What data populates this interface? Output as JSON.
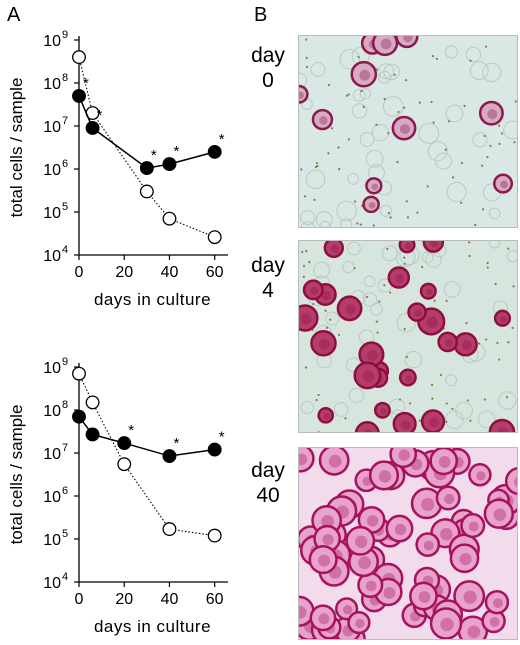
{
  "panel_a": "A",
  "panel_b": "B",
  "chart_data": [
    {
      "type": "scatter",
      "xlabel": "days in culture",
      "ylabel": "total cells / sample",
      "xlim": [
        0,
        65
      ],
      "ylim_exponent": [
        4,
        9
      ],
      "y_scale": "log10",
      "x_ticks": [
        "0",
        "20",
        "40",
        "60"
      ],
      "y_tick_labels": [
        "10",
        "10",
        "10",
        "10",
        "10",
        "10"
      ],
      "y_tick_exponents": [
        "4",
        "5",
        "6",
        "7",
        "8",
        "9"
      ],
      "series": [
        {
          "marker": "filled-circle",
          "line": "solid",
          "x": [
            0,
            6,
            30,
            40,
            60
          ],
          "y": [
            50000000,
            9000000,
            1050000,
            1300000,
            2500000
          ],
          "star_x": [
            0,
            6,
            30,
            40,
            60
          ]
        },
        {
          "marker": "open-circle",
          "line": "dotted",
          "x": [
            0,
            6,
            30,
            40,
            60
          ],
          "y": [
            400000000,
            20000000,
            300000,
            70000,
            26000
          ],
          "star_x": []
        }
      ],
      "annotation_mark": "*"
    },
    {
      "type": "scatter",
      "xlabel": "days in culture",
      "ylabel": "total cells / sample",
      "xlim": [
        0,
        65
      ],
      "ylim_exponent": [
        4,
        9
      ],
      "y_scale": "log10",
      "x_ticks": [
        "0",
        "20",
        "40",
        "60"
      ],
      "y_tick_labels": [
        "10",
        "10",
        "10",
        "10",
        "10",
        "10"
      ],
      "y_tick_exponents": [
        "4",
        "5",
        "6",
        "7",
        "8",
        "9"
      ],
      "series": [
        {
          "marker": "filled-circle",
          "line": "solid",
          "x": [
            0,
            6,
            20,
            40,
            60
          ],
          "y": [
            70000000,
            27000000,
            17000000,
            8500000,
            12000000
          ],
          "star_x": [
            20,
            40,
            60
          ]
        },
        {
          "marker": "open-circle",
          "line": "dotted",
          "x": [
            0,
            6,
            20,
            40,
            60
          ],
          "y": [
            700000000,
            150000000,
            5500000,
            170000,
            120000
          ],
          "star_x": []
        }
      ],
      "annotation_mark": "*"
    }
  ],
  "photos": [
    {
      "label_top": "day",
      "label_bottom": "0",
      "background": "#d9e8e4",
      "cell_color": "#8a1a4a",
      "cell_fill": "#d7a9c2",
      "density": "sparse"
    },
    {
      "label_top": "day",
      "label_bottom": "4",
      "background": "#d6e6df",
      "cell_color": "#8e0f3f",
      "cell_fill": "#b53d6c",
      "density": "medium"
    },
    {
      "label_top": "day",
      "label_bottom": "40",
      "background": "#f2dcec",
      "cell_color": "#a6125e",
      "cell_fill": "#e7a3cb",
      "density": "dense"
    }
  ]
}
